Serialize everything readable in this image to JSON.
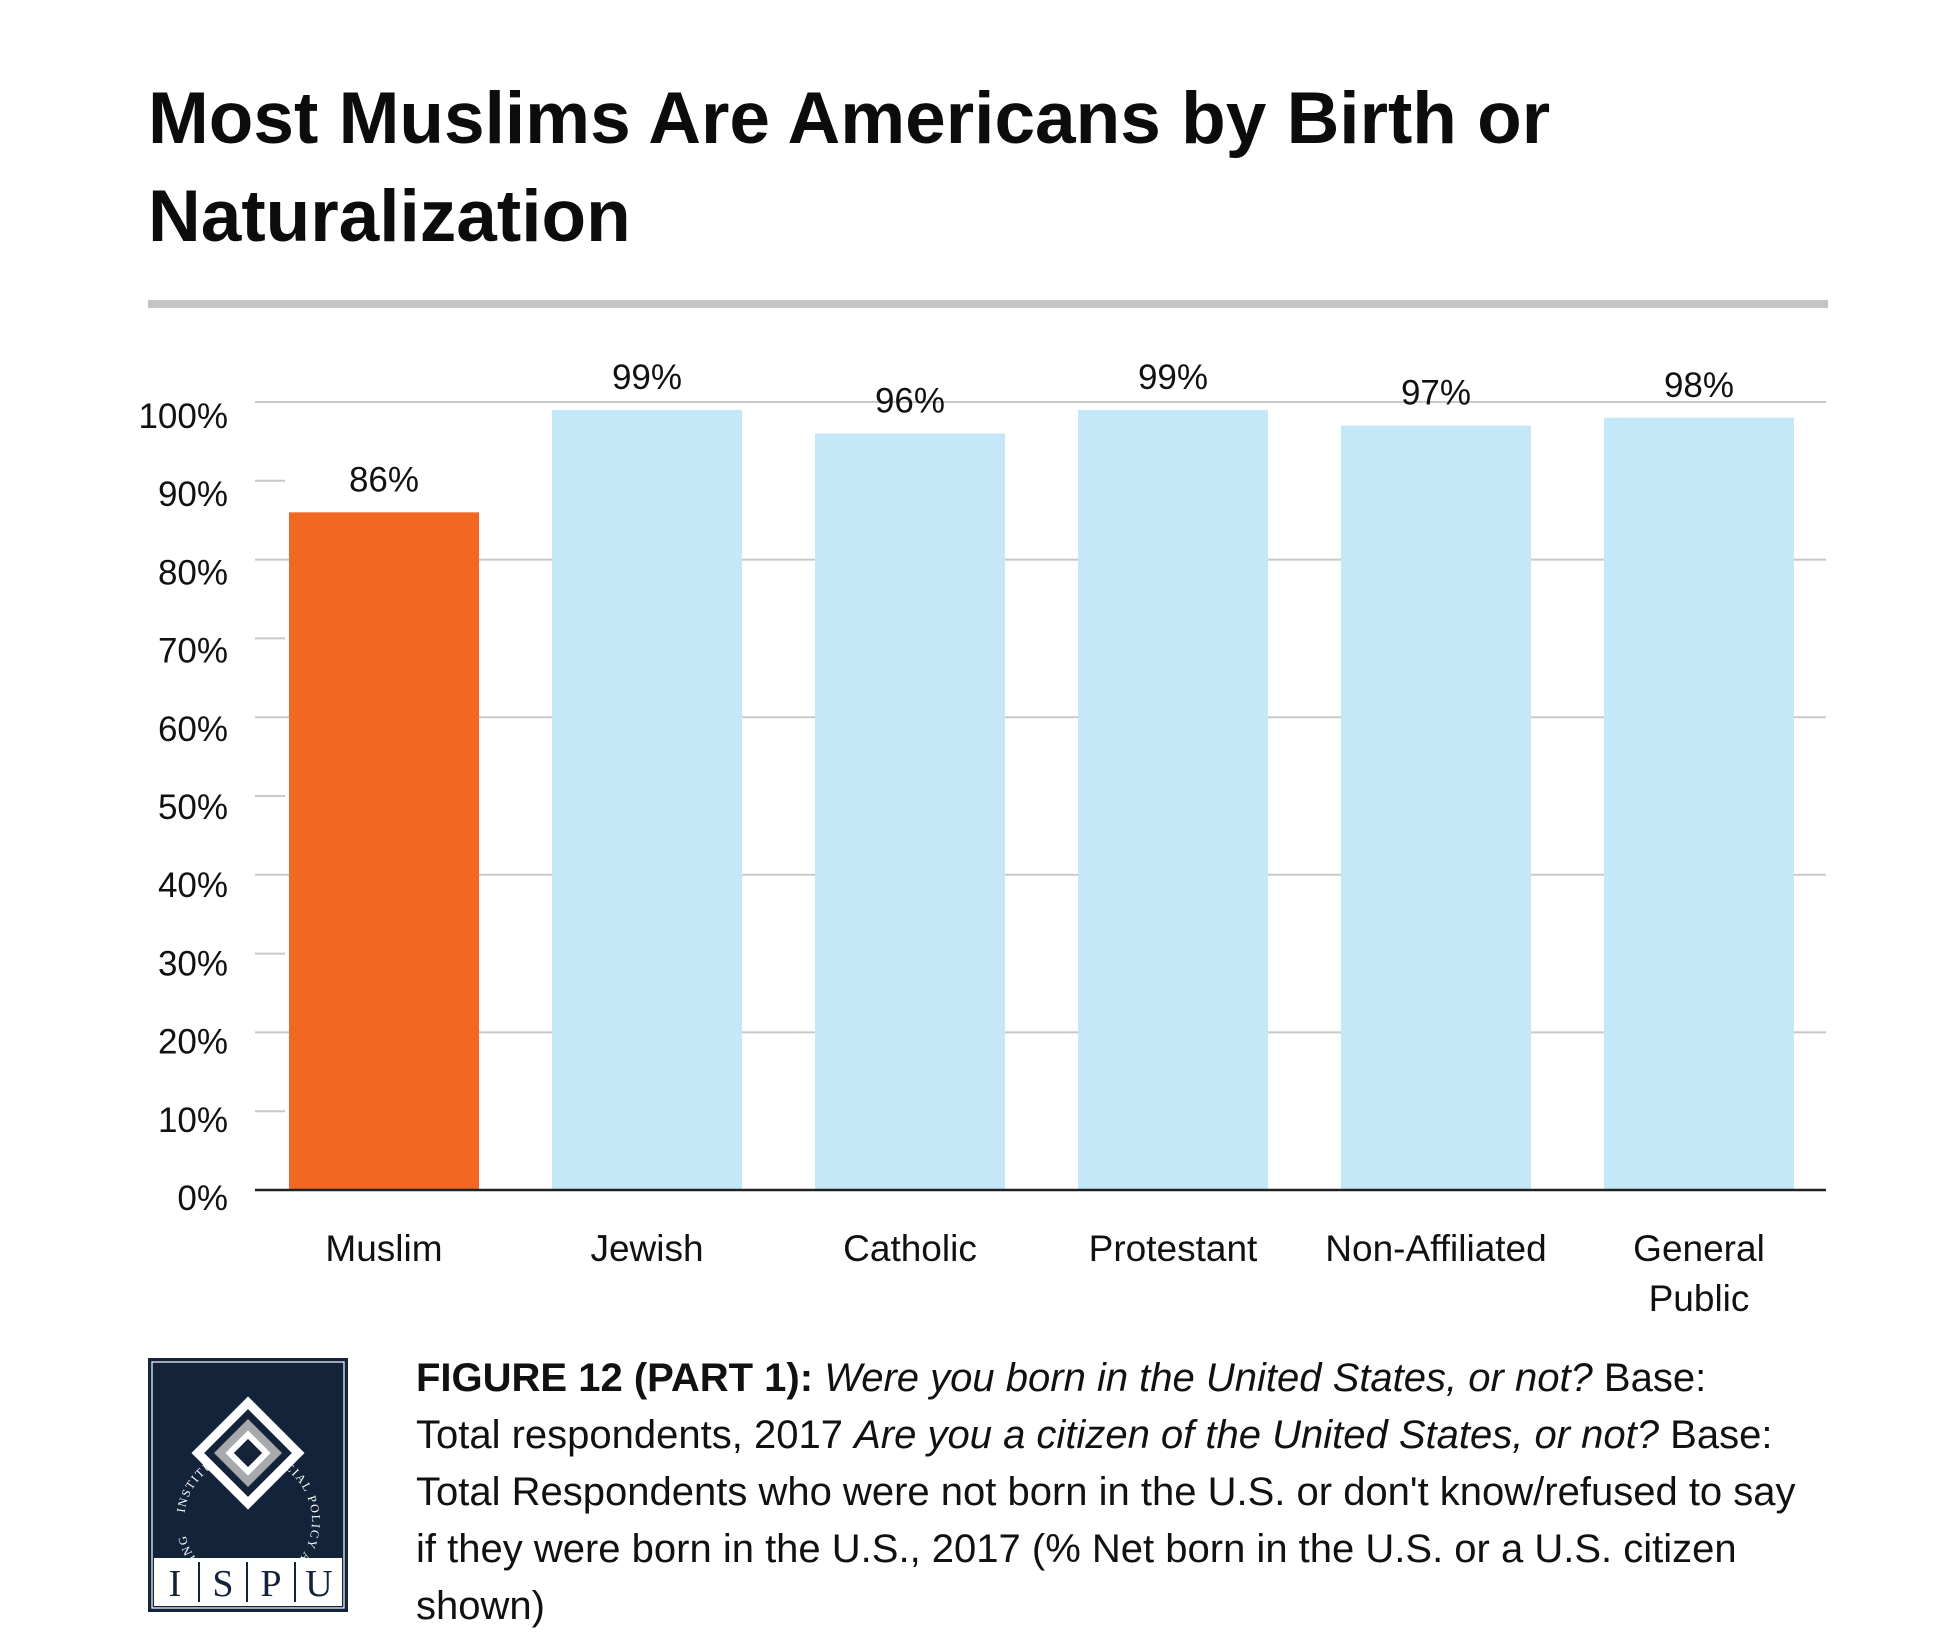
{
  "chart_data": {
    "type": "bar",
    "title": "Most Muslims Are Americans by Birth or Naturalization",
    "categories": [
      "Muslim",
      "Jewish",
      "Catholic",
      "Protestant",
      "Non-Affiliated",
      "General Public"
    ],
    "values": [
      86,
      99,
      96,
      99,
      97,
      98
    ],
    "value_labels": [
      "86%",
      "99%",
      "96%",
      "99%",
      "97%",
      "98%"
    ],
    "y_ticks": [
      "0%",
      "10%",
      "20%",
      "30%",
      "40%",
      "50%",
      "60%",
      "70%",
      "80%",
      "90%",
      "100%"
    ],
    "ylim": [
      0,
      100
    ],
    "xlabel": "",
    "ylabel": "",
    "colors": {
      "highlight": "#f26722",
      "default": "#c5e8f8",
      "grid": "#c8c8c8",
      "axis": "#222222"
    }
  },
  "caption": {
    "figure_label": "FIGURE 12 (PART 1):",
    "q1": "Were you born in the United States, or not?",
    "base1": "Base: Total respondents, 2017",
    "q2": "Are you a citizen of the United States, or not?",
    "base2": "Base: Total Respondents who were not born in the U.S. or don't know/refused to say if they were born in the U.S., 2017 (% Net born in the U.S. or a U.S. citizen shown)"
  },
  "logo": {
    "ring_text": "INSTITUTE FOR SOCIAL POLICY AND UNDERSTANDING",
    "letters": [
      "I",
      "S",
      "P",
      "U"
    ]
  }
}
